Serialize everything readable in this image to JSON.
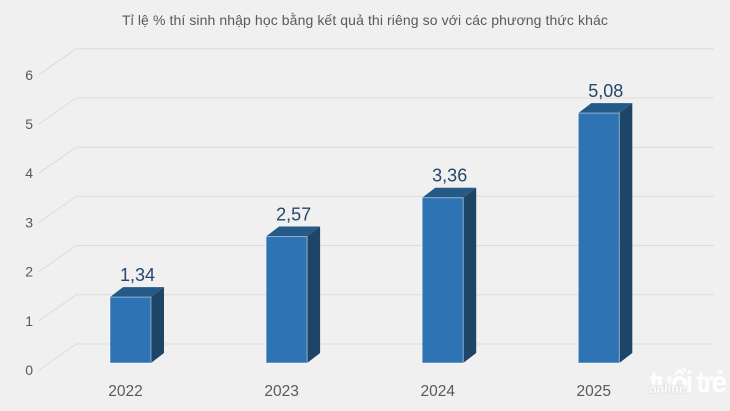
{
  "page": {
    "background": "#f0f0f0"
  },
  "chart_data": {
    "type": "bar",
    "style": "3d-column",
    "title": "Tỉ lệ % thí sinh nhập học bằng kết quả thi riêng so với các phương thức khác",
    "categories": [
      "2022",
      "2023",
      "2024",
      "2025"
    ],
    "values": [
      1.34,
      2.57,
      3.36,
      5.08
    ],
    "value_labels": [
      "1,34",
      "2,57",
      "3,36",
      "5,08"
    ],
    "xlabel": "",
    "ylabel": "",
    "ylim": [
      0,
      6
    ],
    "y_ticks": [
      0,
      1,
      2,
      3,
      4,
      5,
      6
    ],
    "grid": true,
    "legend": "none"
  },
  "colors": {
    "background": "#f0f0f0",
    "grid_line": "#dcdcdc",
    "axis_text": "#595959",
    "bar_front": "#2e74b5",
    "bar_top": "#255988",
    "bar_side": "#1e4466",
    "bar_edge_highlight": "rgba(255,255,255,0.45)",
    "value_label_text": "#24476b",
    "watermark_text": "#ffffff"
  },
  "watermark": {
    "text_main": "tuổi trẻ",
    "text_sub": "online"
  }
}
